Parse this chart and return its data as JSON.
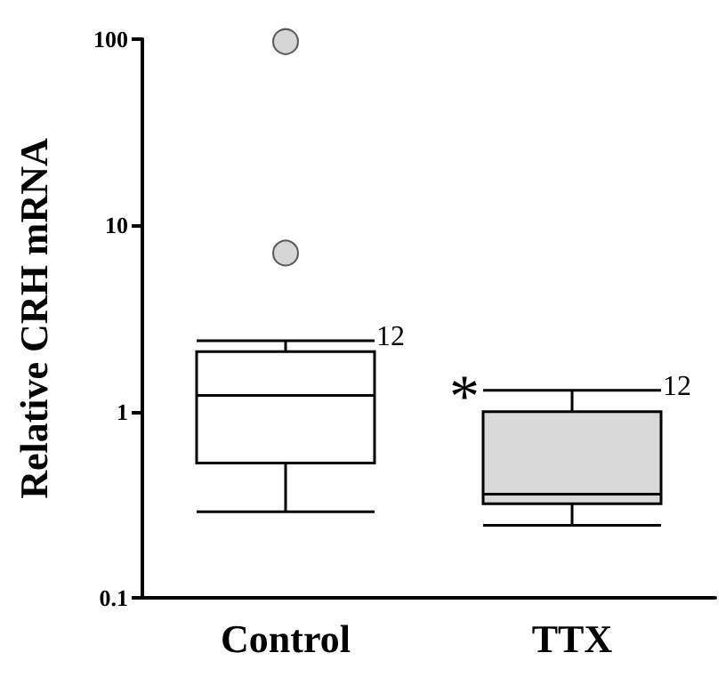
{
  "chart_data": {
    "type": "box",
    "ylabel": "Relative CRH mRNA",
    "categories": [
      "Control",
      "TTX"
    ],
    "log": true,
    "ylim": [
      0.1,
      100
    ],
    "yticks": [
      0.1,
      1,
      10,
      100
    ],
    "grid": false,
    "series": [
      {
        "type": "box",
        "colors": [
          "#ffffff",
          "#d9d9d9"
        ],
        "boxes": [
          {
            "low": 0.29,
            "q1": 0.53,
            "median": 1.22,
            "q3": 2.1,
            "high": 2.4
          },
          {
            "low": 0.245,
            "q1": 0.32,
            "median": 0.36,
            "q3": 1.0,
            "high": 1.3
          }
        ]
      },
      {
        "type": "scatter",
        "x": [
          "Control",
          "Control"
        ],
        "values": [
          97,
          7.1
        ],
        "color": "#cccccc",
        "marker": "circle"
      }
    ],
    "annotations": [
      "12",
      "12",
      "*"
    ]
  }
}
